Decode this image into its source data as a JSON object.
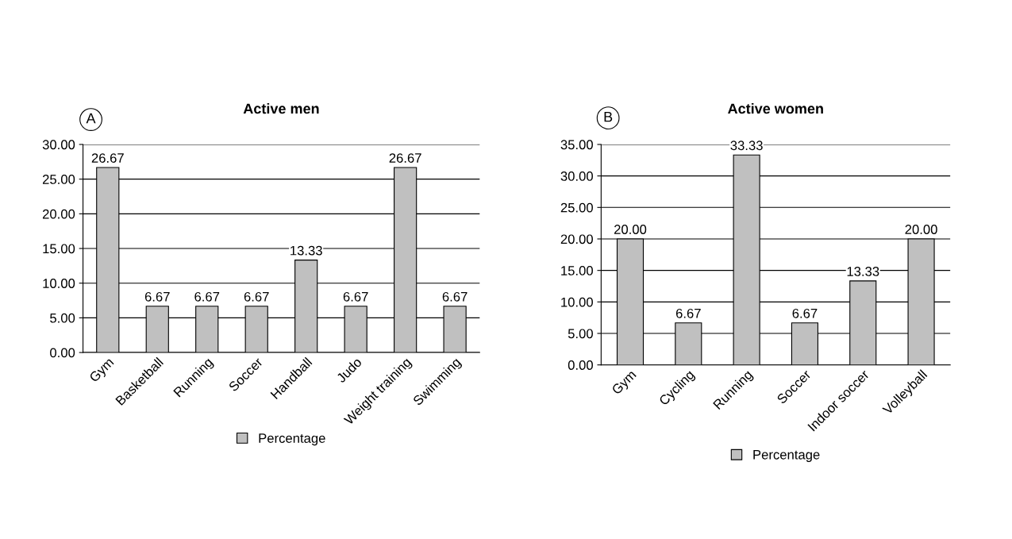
{
  "chart_data": [
    {
      "type": "bar",
      "title": "Active men",
      "annotations": [
        "A"
      ],
      "categories": [
        "Gym",
        "Basketball",
        "Running",
        "Soccer",
        "Handball",
        "Judo",
        "Weight training",
        "Swimming"
      ],
      "series": [
        {
          "name": "Percentage",
          "color": "#c0c0c0",
          "values": [
            26.67,
            6.67,
            6.67,
            6.67,
            13.33,
            6.67,
            26.67,
            6.67
          ],
          "value_labels": [
            "26.67",
            "6.67",
            "6.67",
            "6.67",
            "13.33",
            "6.67",
            "26.67",
            "6.67"
          ]
        }
      ],
      "ylim": [
        0,
        30
      ],
      "yticks": [
        {
          "value": 0,
          "label": "0.00"
        },
        {
          "value": 5,
          "label": "5.00"
        },
        {
          "value": 10,
          "label": "10.00"
        },
        {
          "value": 15,
          "label": "15.00"
        },
        {
          "value": 20,
          "label": "20.00"
        },
        {
          "value": 25,
          "label": "25.00"
        },
        {
          "value": 30,
          "label": "30.00"
        }
      ],
      "grid": "y",
      "legend": "bottom"
    },
    {
      "type": "bar",
      "title": "Active women",
      "annotations": [
        "B"
      ],
      "categories": [
        "Gym",
        "Cycling",
        "Running",
        "Soccer",
        "Indoor soccer",
        "Volleyball"
      ],
      "series": [
        {
          "name": "Percentage",
          "color": "#c0c0c0",
          "values": [
            20,
            6.67,
            33.33,
            6.67,
            13.33,
            20
          ],
          "value_labels": [
            "20.00",
            "6.67",
            "33.33",
            "6.67",
            "13.33",
            "20.00"
          ]
        }
      ],
      "ylim": [
        0,
        35
      ],
      "yticks": [
        {
          "value": 0,
          "label": "0.00"
        },
        {
          "value": 5,
          "label": "5.00"
        },
        {
          "value": 10,
          "label": "10.00"
        },
        {
          "value": 15,
          "label": "15.00"
        },
        {
          "value": 20,
          "label": "20.00"
        },
        {
          "value": 25,
          "label": "25.00"
        },
        {
          "value": 30,
          "label": "30.00"
        },
        {
          "value": 35,
          "label": "35.00"
        }
      ],
      "grid": "y",
      "legend": "bottom"
    }
  ]
}
